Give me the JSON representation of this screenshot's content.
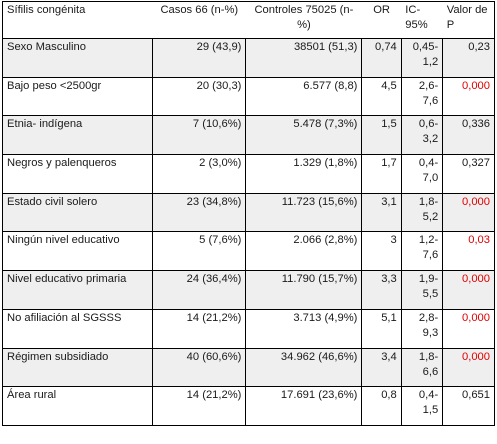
{
  "table": {
    "headers": {
      "variable": "Sífilis congénita",
      "casos": "Casos 66 (n-%)",
      "controles": "Controles 75025 (n-%)",
      "or": "OR",
      "ic": "IC-95%",
      "p": "Valor de P"
    },
    "rows": [
      {
        "variable": "Sexo Masculino",
        "casos": "29 (43,9)",
        "controles": "38501 (51,3)",
        "or": "0,74",
        "ic": "0,45-1,2",
        "p": "0,23",
        "significant": false
      },
      {
        "variable": "Bajo peso <2500gr",
        "casos": "20 (30,3)",
        "controles": "6.577 (8,8)",
        "or": "4,5",
        "ic": "2,6-7,6",
        "p": "0,000",
        "significant": true
      },
      {
        "variable": "Etnia- indígena",
        "casos": "7 (10,6%)",
        "controles": "5.478 (7,3%)",
        "or": "1,5",
        "ic": "0,6-3,2",
        "p": "0,336",
        "significant": false
      },
      {
        "variable": "Negros y palenqueros",
        "casos": "2 (3,0%)",
        "controles": "1.329 (1,8%)",
        "or": "1,7",
        "ic": "0,4-7,0",
        "p": "0,327",
        "significant": false
      },
      {
        "variable": "Estado civil solero",
        "casos": "23 (34,8%)",
        "controles": "11.723 (15,6%)",
        "or": "3,1",
        "ic": "1,8-5,2",
        "p": "0,000",
        "significant": true
      },
      {
        "variable": "Ningún nivel educativo",
        "casos": "5 (7,6%)",
        "controles": "2.066 (2,8%)",
        "or": "3",
        "ic": "1,2-7,6",
        "p": "0,03",
        "significant": true
      },
      {
        "variable": "Nivel educativo primaria",
        "casos": "24 (36,4%)",
        "controles": "11.790 (15,7%)",
        "or": "3,3",
        "ic": "1,9-5,5",
        "p": "0,000",
        "significant": true
      },
      {
        "variable": "No afiliación al SGSSS",
        "casos": "14 (21,2%)",
        "controles": "3.713 (4,9%)",
        "or": "5,1",
        "ic": "2,8-9,3",
        "p": "0,000",
        "significant": true
      },
      {
        "variable": "Régimen subsidiado",
        "casos": "40 (60,6%)",
        "controles": "34.962 (46,6%)",
        "or": "3,4",
        "ic": "1,8-6,6",
        "p": "0,000",
        "significant": true
      },
      {
        "variable": "Área rural",
        "casos": "14 (21,2%)",
        "controles": "17.691 (23,6%)",
        "or": "0,8",
        "ic": "0,4-1,5",
        "p": "0,651",
        "significant": false
      }
    ]
  },
  "colors": {
    "significant": "#e00000",
    "row_shade": "#efefef"
  }
}
